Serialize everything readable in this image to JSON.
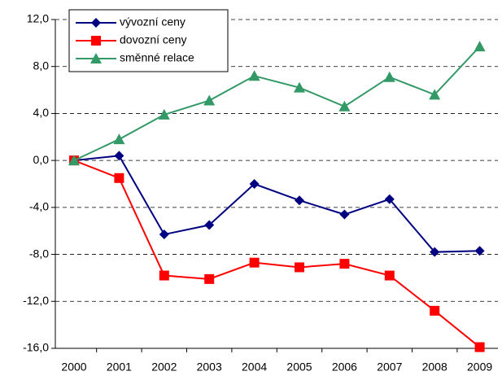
{
  "chart_data": {
    "type": "line",
    "categories": [
      "2000",
      "2001",
      "2002",
      "2003",
      "2004",
      "2005",
      "2006",
      "2007",
      "2008",
      "2009"
    ],
    "series": [
      {
        "name": "vývozní ceny",
        "color": "#000080",
        "marker": "diamond",
        "values": [
          0,
          0.4,
          -6.3,
          -5.5,
          -2.0,
          -3.4,
          -4.6,
          -3.3,
          -7.8,
          -7.7
        ]
      },
      {
        "name": "dovozní ceny",
        "color": "#ff0000",
        "marker": "square",
        "values": [
          0,
          -1.5,
          -9.8,
          -10.1,
          -8.7,
          -9.1,
          -8.8,
          -9.8,
          -12.8,
          -15.9
        ]
      },
      {
        "name": "směnné relace",
        "color": "#339966",
        "marker": "triangle",
        "values": [
          0,
          1.8,
          3.9,
          5.1,
          7.2,
          6.2,
          4.6,
          7.1,
          5.6,
          9.7
        ]
      }
    ],
    "ylim": [
      -16,
      12
    ],
    "yticks": [
      {
        "value": -16,
        "label": "-16,0"
      },
      {
        "value": -12,
        "label": "-12,0"
      },
      {
        "value": -8,
        "label": "-8,0"
      },
      {
        "value": -4,
        "label": "-4,0"
      },
      {
        "value": 0,
        "label": "0,0"
      },
      {
        "value": 4,
        "label": "4,0"
      },
      {
        "value": 8,
        "label": "8,0"
      },
      {
        "value": 12,
        "label": "12,0"
      }
    ],
    "grid": true,
    "legend": "top-left"
  }
}
